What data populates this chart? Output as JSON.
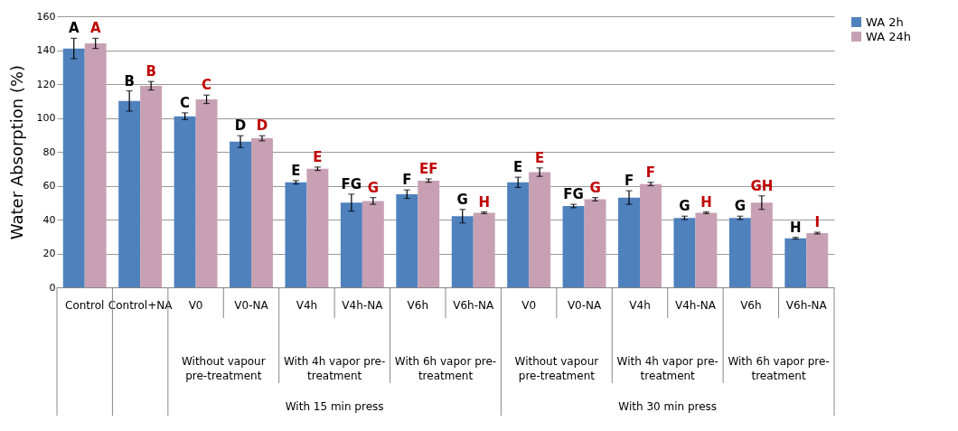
{
  "chart_data": {
    "type": "bar",
    "categories": [
      "Control",
      "Control+NA",
      "V0",
      "V0-NA",
      "V4h",
      "V4h-NA",
      "V6h",
      "V6h-NA",
      "V0",
      "V0-NA",
      "V4h",
      "V4h-NA",
      "V6h",
      "V6h-NA"
    ],
    "ylabel": "Water Absorption (%)",
    "series": [
      {
        "name": "WA 2h",
        "color": "#4f81bd",
        "values": [
          141,
          110,
          101,
          86,
          62,
          50,
          55,
          42,
          62,
          48,
          53,
          41,
          41,
          29
        ],
        "errors": [
          6,
          6,
          2,
          3.5,
          1,
          5,
          2.5,
          4,
          3,
          1,
          4,
          1,
          1,
          0.5
        ],
        "value_labels": [
          "A",
          "B",
          "C",
          "D",
          "E",
          "FG",
          "F",
          "G",
          "E",
          "FG",
          "F",
          "G",
          "G",
          "H"
        ]
      },
      {
        "name": "WA 24h",
        "color": "#c8a0b4",
        "values": [
          144,
          119,
          111,
          88,
          70,
          51,
          63,
          44,
          68,
          52,
          61,
          44,
          50,
          32
        ],
        "errors": [
          3,
          2.5,
          2.5,
          1.5,
          1,
          2,
          1,
          0.5,
          2.5,
          1,
          1,
          0.5,
          4,
          0.5
        ],
        "value_labels": [
          "A",
          "B",
          "C",
          "D",
          "E",
          "G",
          "EF",
          "H",
          "E",
          "G",
          "F",
          "H",
          "GH",
          "I"
        ]
      }
    ],
    "annotations": [
      "Without vapour pre-treatment",
      "With 4h vapor pre-treatment",
      "With 6h vapor pre-treatment",
      "Without vapour pre-treatment",
      "With 4h vapor pre-treatment",
      "With 6h vapor pre-treatment",
      "With 15 min press",
      "With 30 min press"
    ],
    "ylim": [
      0,
      160
    ],
    "yticks": [
      0,
      20,
      40,
      60,
      80,
      100,
      120,
      140,
      160
    ],
    "grid": "y",
    "legend": "top right"
  }
}
